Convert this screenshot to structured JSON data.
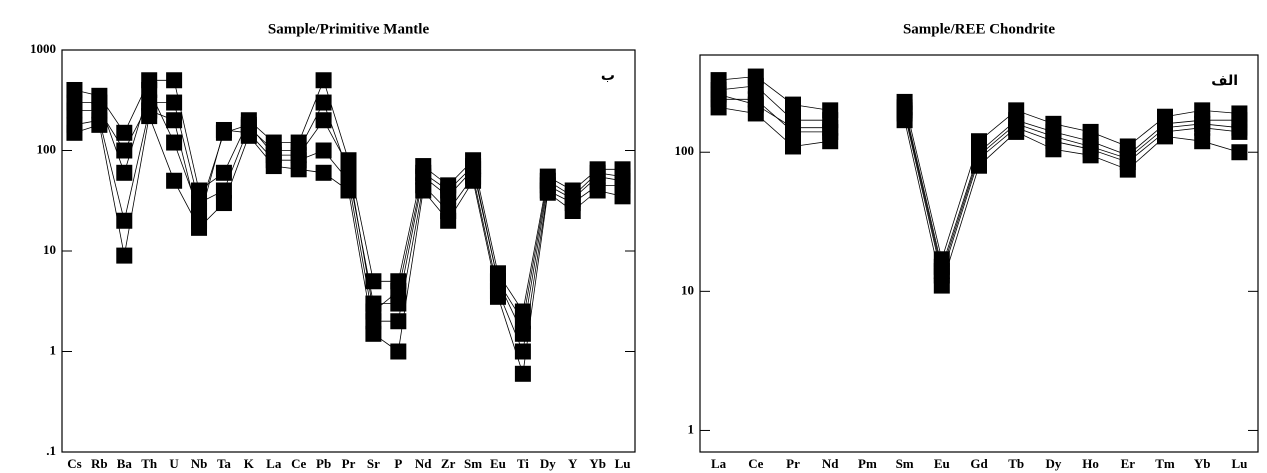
{
  "chart_data": [
    {
      "type": "line",
      "title": "Sample/Primitive Mantle",
      "annotation": "ب",
      "log_scale": true,
      "marker": "square",
      "categories": [
        "Cs",
        "Rb",
        "Ba",
        "Th",
        "U",
        "Nb",
        "Ta",
        "K",
        "La",
        "Ce",
        "Pb",
        "Pr",
        "Sr",
        "P",
        "Nd",
        "Zr",
        "Sm",
        "Eu",
        "Ti",
        "Dy",
        "Y",
        "Yb",
        "Lu"
      ],
      "series": [
        {
          "color": "#000000",
          "values": [
            400,
            350,
            150,
            500,
            500,
            40,
            60,
            200,
            120,
            120,
            500,
            80,
            5,
            5,
            70,
            45,
            80,
            6,
            2.5,
            55,
            40,
            65,
            65
          ]
        },
        {
          "color": "#000000",
          "values": [
            250,
            250,
            100,
            300,
            300,
            30,
            40,
            170,
            100,
            100,
            300,
            60,
            3,
            3,
            55,
            35,
            65,
            5,
            1.5,
            45,
            33,
            55,
            50
          ]
        },
        {
          "color": "#000000",
          "values": [
            180,
            200,
            20,
            250,
            200,
            20,
            160,
            150,
            80,
            80,
            100,
            50,
            2,
            2,
            45,
            25,
            55,
            4,
            1,
            40,
            30,
            45,
            45
          ]
        },
        {
          "color": "#000000",
          "values": [
            150,
            180,
            9,
            220,
            50,
            17,
            30,
            140,
            70,
            65,
            60,
            40,
            1.5,
            1,
            40,
            20,
            50,
            3.5,
            0.6,
            38,
            25,
            40,
            35
          ]
        },
        {
          "color": "#000000",
          "values": [
            300,
            300,
            60,
            400,
            120,
            25,
            150,
            180,
            90,
            90,
            200,
            70,
            2.5,
            4,
            60,
            40,
            70,
            5,
            2,
            50,
            35,
            60,
            55
          ]
        }
      ],
      "ylim": [
        0.1,
        1000
      ],
      "yticks": [
        {
          "value": 0.1,
          "label": ".1"
        },
        1,
        10,
        100,
        1000
      ]
    },
    {
      "type": "line",
      "title": "Sample/REE Chondrite",
      "annotation": "الف",
      "log_scale": true,
      "marker": "square",
      "categories": [
        "La",
        "Ce",
        "Pr",
        "Nd",
        "Pm",
        "Sm",
        "Eu",
        "Gd",
        "Tb",
        "Dy",
        "Ho",
        "Er",
        "Tm",
        "Yb",
        "Lu"
      ],
      "series": [
        {
          "color": "#000000",
          "values": [
            330,
            350,
            220,
            200,
            null,
            230,
            17,
            120,
            200,
            160,
            140,
            110,
            180,
            200,
            190
          ]
        },
        {
          "color": "#000000",
          "values": [
            280,
            300,
            170,
            170,
            null,
            210,
            15,
            100,
            170,
            140,
            120,
            95,
            160,
            170,
            170
          ]
        },
        {
          "color": "#000000",
          "values": [
            240,
            240,
            140,
            140,
            null,
            190,
            13,
            90,
            150,
            120,
            105,
            85,
            140,
            150,
            140
          ]
        },
        {
          "color": "#000000",
          "values": [
            210,
            190,
            110,
            120,
            null,
            170,
            11,
            80,
            140,
            105,
            95,
            75,
            130,
            120,
            100
          ]
        },
        {
          "color": "#000000",
          "values": [
            260,
            220,
            150,
            150,
            null,
            200,
            14,
            95,
            160,
            130,
            110,
            90,
            150,
            160,
            150
          ]
        }
      ],
      "ylim": [
        0.7,
        500
      ],
      "yticks": [
        1,
        10,
        100
      ]
    }
  ]
}
